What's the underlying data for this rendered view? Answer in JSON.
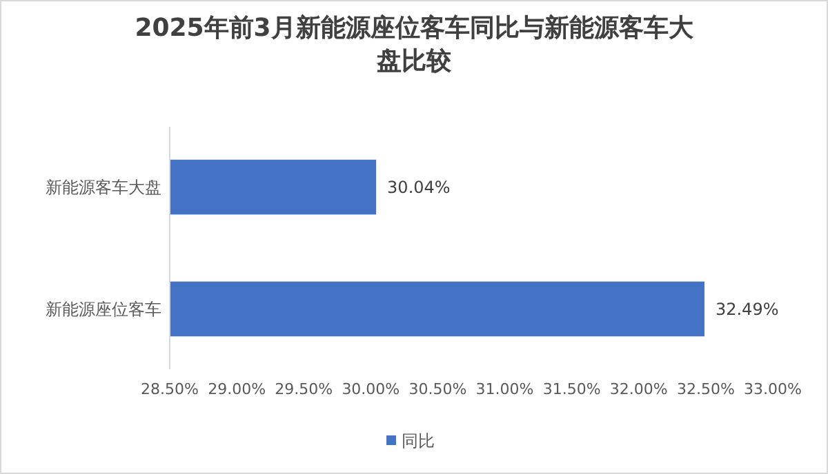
{
  "chart_data": {
    "type": "bar",
    "orientation": "horizontal",
    "title": "2025年前3月新能源座位客车同比与新能源客车大盘比较",
    "categories": [
      "新能源客车大盘",
      "新能源座位客车"
    ],
    "series": [
      {
        "name": "同比",
        "color": "#4472c4",
        "values": [
          30.04,
          32.49
        ],
        "value_labels": [
          "30.04%",
          "32.49%"
        ]
      }
    ],
    "xlim": [
      28.5,
      33
    ],
    "xticks": [
      {
        "value": 28.5,
        "label": "28.50%"
      },
      {
        "value": 29,
        "label": "29.00%"
      },
      {
        "value": 29.5,
        "label": "29.50%"
      },
      {
        "value": 30,
        "label": "30.00%"
      },
      {
        "value": 30.5,
        "label": "30.50%"
      },
      {
        "value": 31,
        "label": "31.00%"
      },
      {
        "value": 31.5,
        "label": "31.50%"
      },
      {
        "value": 32,
        "label": "32.00%"
      },
      {
        "value": 32.5,
        "label": "32.50%"
      },
      {
        "value": 33,
        "label": "33.00%"
      }
    ],
    "legend": "bottom"
  }
}
